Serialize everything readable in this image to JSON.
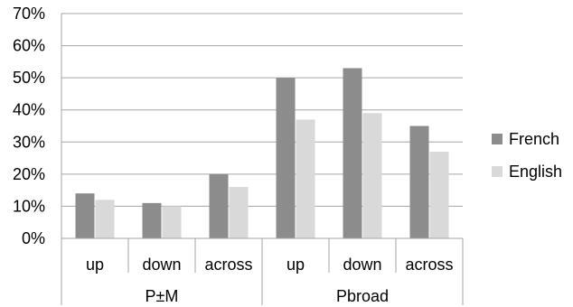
{
  "chart_data": {
    "type": "bar",
    "groups": [
      {
        "label": "P±M",
        "categories": [
          "up",
          "down",
          "across"
        ]
      },
      {
        "label": "Pbroad",
        "categories": [
          "up",
          "down",
          "across"
        ]
      }
    ],
    "categories": [
      "up",
      "down",
      "across",
      "up",
      "down",
      "across"
    ],
    "series": [
      {
        "name": "French",
        "values": [
          14,
          11,
          20,
          50,
          53,
          35
        ],
        "color": "#8c8c8c"
      },
      {
        "name": "English",
        "values": [
          12,
          10,
          16,
          37,
          39,
          27
        ],
        "color": "#d9d9d9"
      }
    ],
    "ylim": [
      0,
      70
    ],
    "yticks": [
      0,
      10,
      20,
      30,
      40,
      50,
      60,
      70
    ],
    "ytick_labels": [
      "0%",
      "10%",
      "20%",
      "30%",
      "40%",
      "50%",
      "60%",
      "70%"
    ],
    "grid": true,
    "legend_position": "right",
    "title": "",
    "xlabel": "",
    "ylabel": ""
  }
}
